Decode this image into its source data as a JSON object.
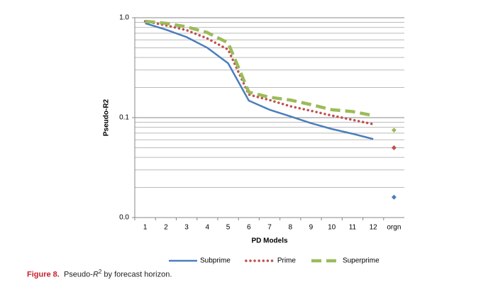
{
  "chart_data": {
    "type": "line",
    "y_axis_label": "Pseudo-R2",
    "x_axis_label": "PD Models",
    "categories": [
      "1",
      "2",
      "3",
      "4",
      "5",
      "6",
      "7",
      "8",
      "9",
      "10",
      "11",
      "12",
      "orgn"
    ],
    "last_category_marker_only": true,
    "series": [
      {
        "name": "Subprime",
        "color": "#4a7ebb",
        "dash": "solid",
        "values": [
          0.88,
          0.76,
          0.64,
          0.5,
          0.35,
          0.148,
          0.12,
          0.103,
          0.088,
          0.077,
          0.069,
          0.061,
          0.016
        ]
      },
      {
        "name": "Prime",
        "color": "#c0504d",
        "dash": "dotted",
        "values": [
          0.92,
          0.84,
          0.75,
          0.62,
          0.48,
          0.17,
          0.15,
          0.13,
          0.117,
          0.105,
          0.095,
          0.086,
          0.05
        ]
      },
      {
        "name": "Superprime",
        "color": "#9bbb59",
        "dash": "dashed",
        "values": [
          0.92,
          0.88,
          0.81,
          0.71,
          0.56,
          0.18,
          0.16,
          0.15,
          0.135,
          0.12,
          0.115,
          0.105,
          0.075
        ]
      }
    ],
    "log_y": true,
    "grid": true,
    "ylim": [
      0.01,
      1
    ],
    "yticks": [
      {
        "value": 0.01,
        "label": "0.0"
      },
      0.1,
      {
        "value": 1,
        "label": "1.0"
      }
    ],
    "minor_yticks": [
      0.02,
      0.03,
      0.04,
      0.05,
      0.06,
      0.07,
      0.08,
      0.09,
      0.2,
      0.3,
      0.4,
      0.5,
      0.6,
      0.7,
      0.8,
      0.9
    ],
    "legend": "bottom"
  },
  "caption": {
    "label": "Figure 8.",
    "text_start": "Pseudo-",
    "text_italic": "R",
    "text_sup": "2",
    "text_end": " by forecast horizon."
  }
}
